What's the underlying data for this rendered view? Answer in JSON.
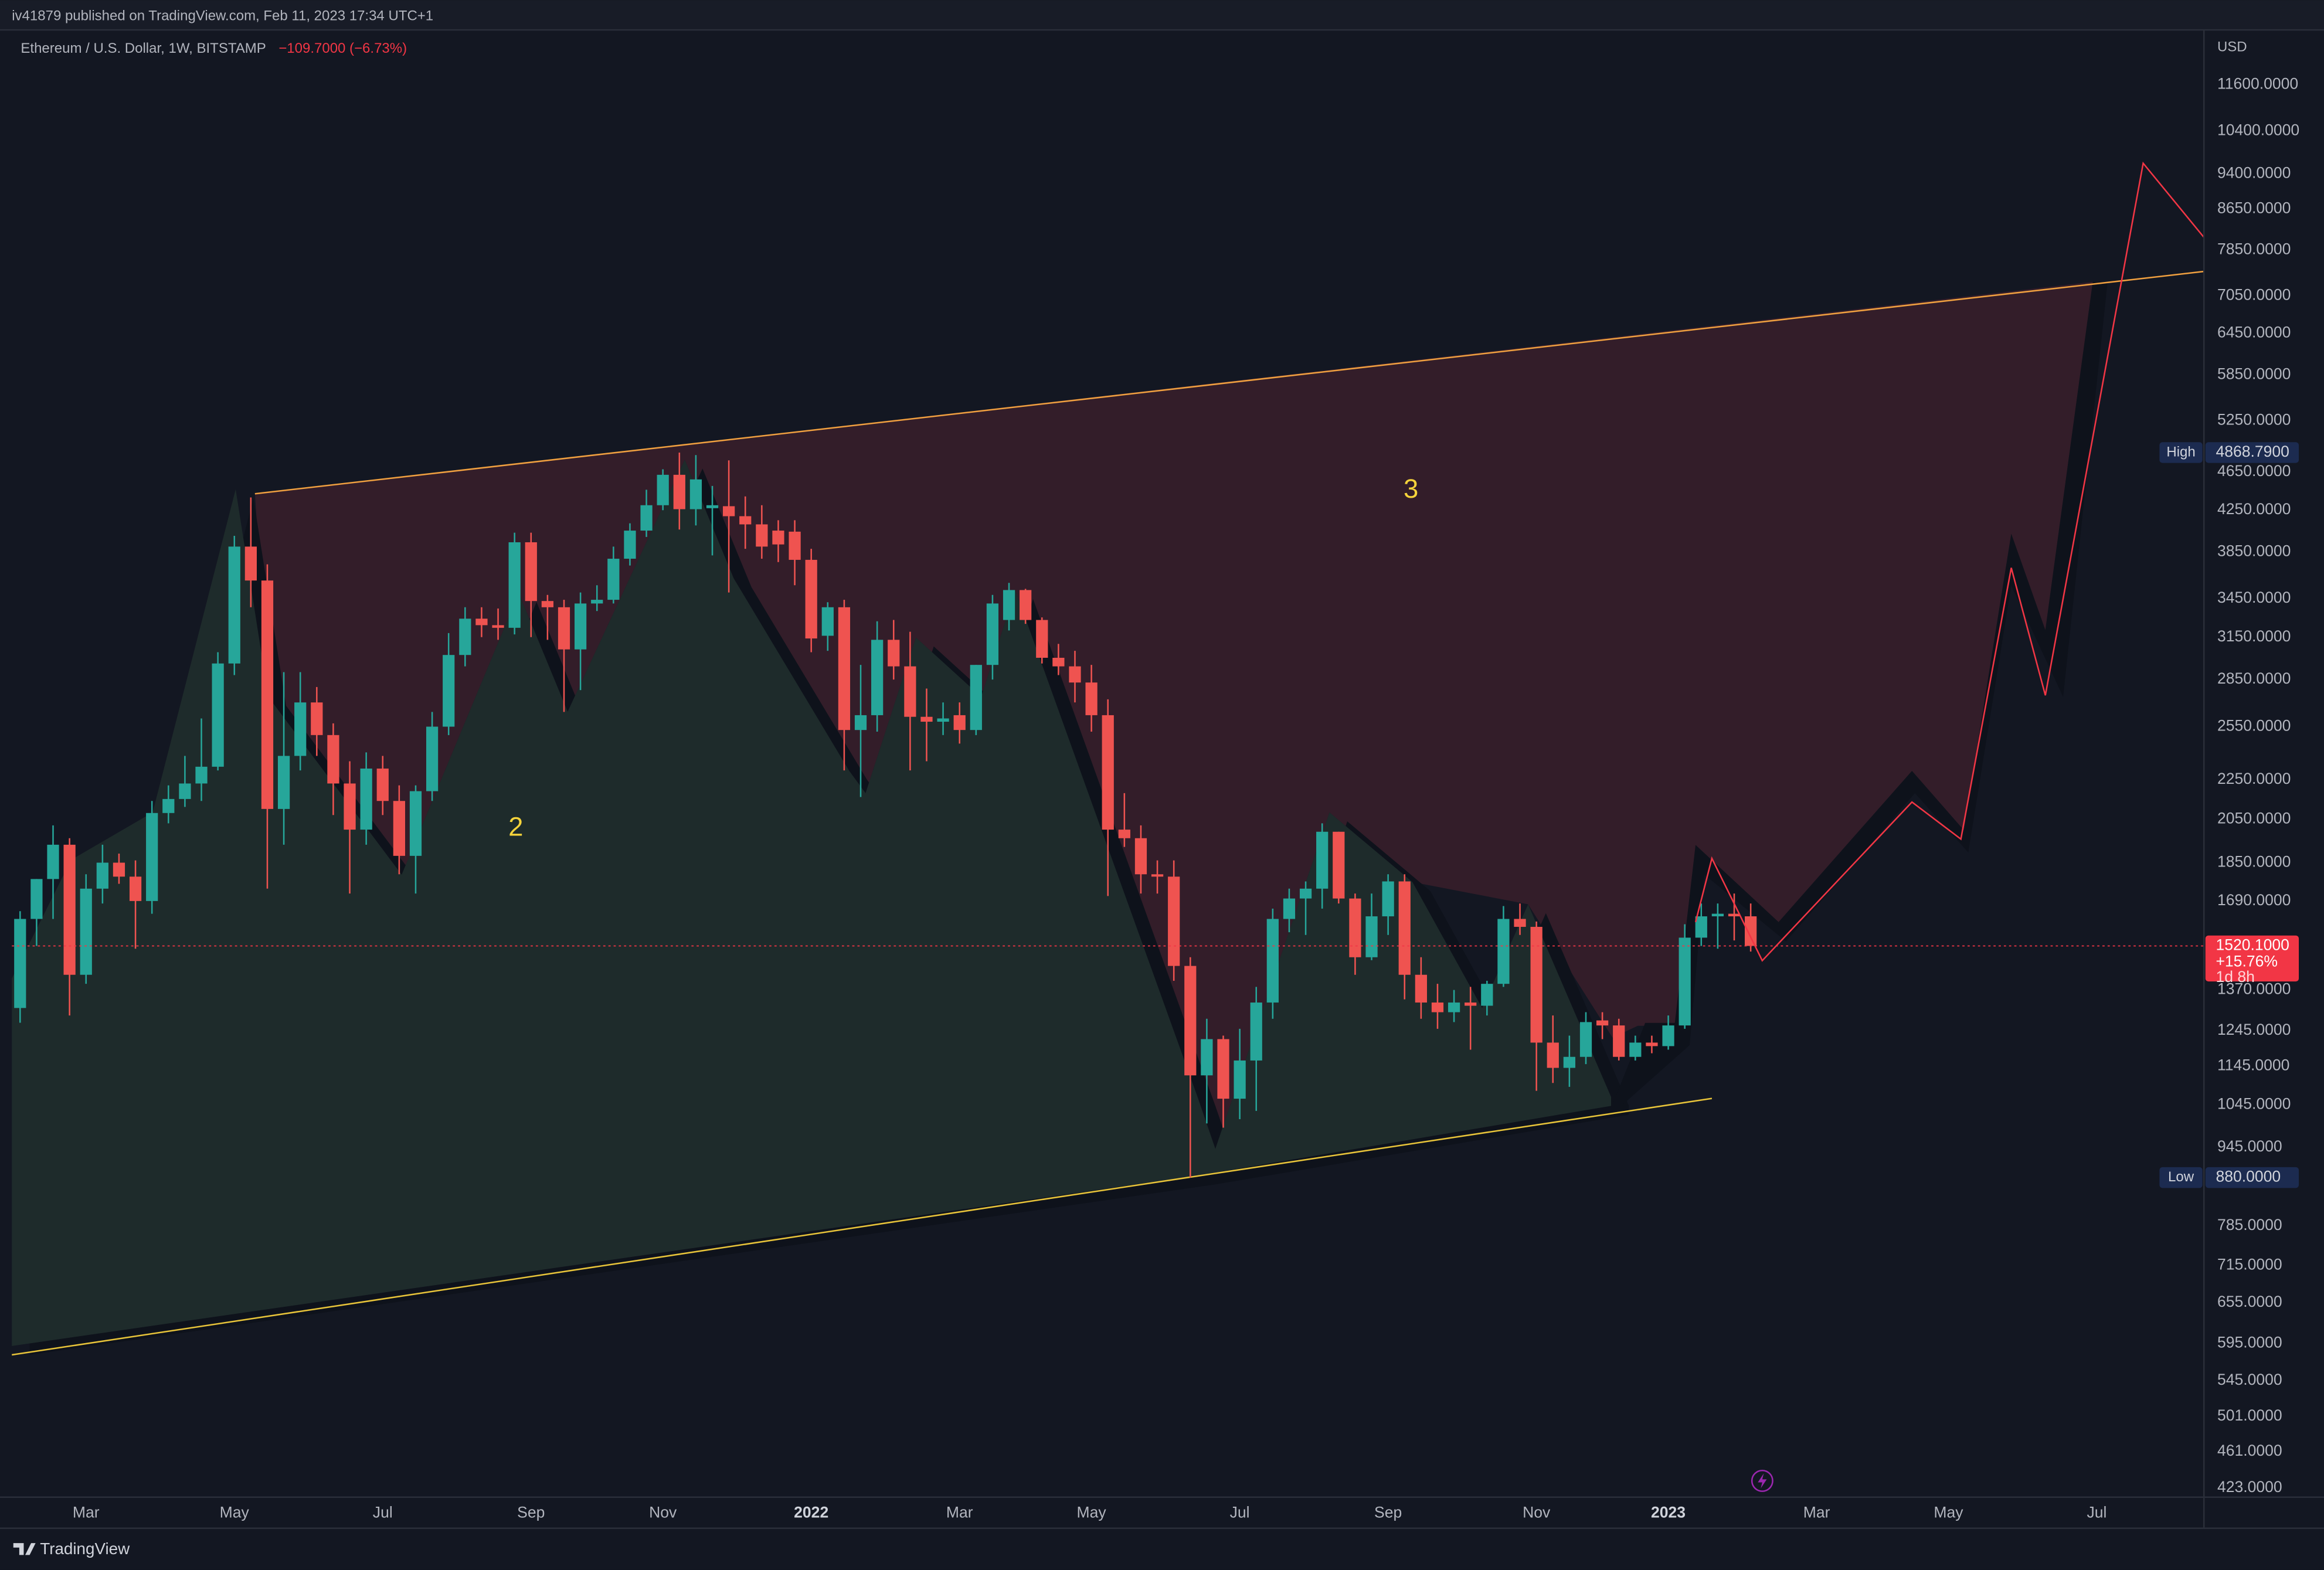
{
  "header": {
    "publisher": "iv41879 published on TradingView.com, Feb 11, 2023 17:34 UTC+1"
  },
  "chart_data": {
    "type": "candlestick",
    "title": "Ethereum / U.S. Dollar, 1W, BITSTAMP",
    "change_label": "−109.7000 (−6.73%)",
    "currency": "USD",
    "up_color": "#26a69a",
    "down_color": "#ef5350",
    "log_scale": true,
    "categories": [
      null,
      null,
      null,
      null,
      "Mar",
      null,
      null,
      null,
      null,
      null,
      null,
      null,
      null,
      "May",
      null,
      null,
      null,
      null,
      null,
      null,
      null,
      null,
      "Jul",
      null,
      null,
      null,
      null,
      null,
      null,
      null,
      null,
      "Sep",
      null,
      null,
      null,
      null,
      null,
      null,
      null,
      "Nov",
      null,
      null,
      null,
      null,
      null,
      null,
      null,
      null,
      "2022",
      null,
      null,
      null,
      null,
      null,
      null,
      null,
      null,
      "Mar",
      null,
      null,
      null,
      null,
      null,
      null,
      null,
      "May",
      null,
      null,
      null,
      null,
      null,
      null,
      null,
      null,
      "Jul",
      null,
      null,
      null,
      null,
      null,
      null,
      null,
      null,
      "Sep",
      null,
      null,
      null,
      null,
      null,
      null,
      null,
      null,
      "Nov",
      null,
      null,
      null,
      null,
      null,
      null,
      null,
      "2023",
      null,
      null,
      null,
      null,
      null,
      null,
      null,
      null,
      "Mar",
      null,
      null,
      null,
      null,
      null,
      null,
      null,
      "May",
      null,
      null,
      null,
      null,
      null,
      null,
      null,
      null,
      "Jul",
      null,
      null,
      null,
      null,
      null,
      null
    ],
    "open": [
      1313,
      1620,
      1780,
      1930,
      1420,
      1740,
      1850,
      1790,
      1690,
      2080,
      2150,
      2230,
      2320,
      2960,
      3900,
      3600,
      2100,
      2380,
      2700,
      2500,
      2230,
      2000,
      2310,
      2140,
      1880,
      2190,
      2550,
      3020,
      3290,
      3240,
      3220,
      3940,
      3430,
      3380,
      3060,
      3410,
      3440,
      3790,
      4050,
      4300,
      4620,
      4260,
      4270,
      4290,
      4190,
      4110,
      4050,
      4040,
      3780,
      3160,
      3380,
      2530,
      2620,
      3130,
      2940,
      2610,
      2580,
      2620,
      2530,
      2950,
      3280,
      3520,
      3280,
      3000,
      2940,
      2830,
      2620,
      2000,
      1960,
      1800,
      1790,
      1450,
      1120,
      1220,
      1060,
      1160,
      1330,
      1620,
      1700,
      1740,
      1990,
      1700,
      1480,
      1630,
      1770,
      1420,
      1330,
      1300,
      1330,
      1320,
      1390,
      1620,
      1590,
      1210,
      1140,
      1170,
      1275,
      1260,
      1170,
      1210,
      1200,
      1260,
      1550,
      1630,
      1640,
      1630,
      null,
      null,
      null,
      null,
      null,
      null,
      null,
      null,
      null,
      null,
      null,
      null,
      null,
      null,
      null,
      null,
      null,
      null,
      null,
      null,
      null,
      null,
      null,
      null,
      null,
      null,
      null
    ],
    "high": [
      1650,
      1780,
      2020,
      1960,
      1800,
      1930,
      1890,
      1860,
      2140,
      2220,
      2380,
      2600,
      3040,
      4000,
      4380,
      3740,
      2900,
      2900,
      2800,
      2570,
      2350,
      2400,
      2380,
      2220,
      2220,
      2640,
      3180,
      3380,
      3380,
      3370,
      4030,
      4030,
      3480,
      3440,
      3500,
      3560,
      3900,
      4120,
      4460,
      4680,
      4868.79,
      4840,
      4500,
      4780,
      4390,
      4300,
      4150,
      4150,
      3880,
      3420,
      3440,
      2950,
      3270,
      3280,
      3190,
      2790,
      2700,
      2700,
      2950,
      3480,
      3580,
      3530,
      3300,
      3100,
      3050,
      2950,
      2720,
      2180,
      2020,
      1860,
      1860,
      1480,
      1280,
      1230,
      1250,
      1380,
      1660,
      1740,
      1770,
      2030,
      1990,
      1720,
      1720,
      1800,
      1800,
      1480,
      1390,
      1370,
      1380,
      1400,
      1670,
      1680,
      1610,
      1290,
      1230,
      1300,
      1300,
      1280,
      1230,
      1230,
      1290,
      1600,
      1680,
      1680,
      1720,
      1680,
      null,
      null,
      null,
      null,
      null,
      null,
      null,
      null,
      null,
      null,
      null,
      null,
      null,
      null,
      null,
      null,
      null,
      null,
      null,
      null,
      null,
      null,
      null,
      null,
      null,
      null,
      null
    ],
    "low": [
      1268,
      1520,
      1620,
      1290,
      1390,
      1680,
      1760,
      1510,
      1640,
      2030,
      2110,
      2140,
      2300,
      2880,
      3380,
      1740,
      1930,
      2300,
      2380,
      2070,
      1720,
      1930,
      2070,
      1800,
      1720,
      2140,
      2500,
      2940,
      3150,
      3130,
      3170,
      3150,
      3130,
      2640,
      2780,
      3350,
      3410,
      3730,
      3990,
      4250,
      4060,
      4100,
      3820,
      3500,
      3880,
      3790,
      3760,
      3560,
      3040,
      3050,
      2300,
      2160,
      2520,
      2850,
      2300,
      2350,
      2500,
      2450,
      2500,
      2850,
      3200,
      3250,
      2960,
      2880,
      2700,
      2520,
      1710,
      1920,
      1720,
      1720,
      1400,
      880,
      1000,
      990,
      1010,
      1030,
      1280,
      1570,
      1560,
      1660,
      1680,
      1420,
      1470,
      1560,
      1340,
      1280,
      1250,
      1270,
      1190,
      1290,
      1380,
      1560,
      1080,
      1100,
      1090,
      1150,
      1220,
      1160,
      1160,
      1180,
      1190,
      1250,
      1520,
      1510,
      1540,
      1500,
      null,
      null,
      null,
      null,
      null,
      null,
      null,
      null,
      null,
      null,
      null,
      null,
      null,
      null,
      null,
      null,
      null,
      null,
      null,
      null,
      null,
      null,
      null,
      null,
      null,
      null,
      null
    ],
    "close": [
      1620,
      1780,
      1930,
      1420,
      1740,
      1850,
      1790,
      1690,
      2080,
      2150,
      2230,
      2320,
      2960,
      3900,
      3600,
      2100,
      2380,
      2700,
      2500,
      2230,
      2000,
      2310,
      2140,
      1880,
      2190,
      2550,
      3020,
      3290,
      3240,
      3220,
      3940,
      3430,
      3380,
      3060,
      3410,
      3440,
      3790,
      4050,
      4300,
      4620,
      4260,
      4570,
      4300,
      4190,
      4110,
      3900,
      3920,
      3780,
      3140,
      3380,
      2530,
      2620,
      3130,
      2940,
      2610,
      2580,
      2600,
      2530,
      2950,
      3410,
      3520,
      3280,
      3000,
      2940,
      2830,
      2620,
      2000,
      1960,
      1800,
      1790,
      1450,
      1120,
      1220,
      1060,
      1160,
      1330,
      1620,
      1700,
      1740,
      1990,
      1700,
      1480,
      1630,
      1770,
      1420,
      1330,
      1300,
      1330,
      1320,
      1390,
      1620,
      1590,
      1210,
      1140,
      1170,
      1270,
      1260,
      1170,
      1210,
      1200,
      1260,
      1550,
      1630,
      1640,
      1630,
      1520.1,
      null,
      null,
      null,
      null,
      null,
      null,
      null,
      null,
      null,
      null,
      null,
      null,
      null,
      null,
      null,
      null,
      null,
      null,
      null,
      null,
      null,
      null,
      null,
      null,
      null,
      null,
      null
    ],
    "ylim": [
      414,
      13200
    ],
    "yticks": [
      {
        "value": 11600,
        "label": "11600.0000"
      },
      {
        "value": 10400,
        "label": "10400.0000"
      },
      {
        "value": 9400,
        "label": "9400.0000"
      },
      {
        "value": 8650,
        "label": "8650.0000"
      },
      {
        "value": 7850,
        "label": "7850.0000"
      },
      {
        "value": 7050,
        "label": "7050.0000"
      },
      {
        "value": 6450,
        "label": "6450.0000"
      },
      {
        "value": 5850,
        "label": "5850.0000"
      },
      {
        "value": 5250,
        "label": "5250.0000"
      },
      {
        "value": 4650,
        "label": "4650.0000"
      },
      {
        "value": 4250,
        "label": "4250.0000"
      },
      {
        "value": 3850,
        "label": "3850.0000"
      },
      {
        "value": 3450,
        "label": "3450.0000"
      },
      {
        "value": 3150,
        "label": "3150.0000"
      },
      {
        "value": 2850,
        "label": "2850.0000"
      },
      {
        "value": 2550,
        "label": "2550.0000"
      },
      {
        "value": 2250,
        "label": "2250.0000"
      },
      {
        "value": 2050,
        "label": "2050.0000"
      },
      {
        "value": 1850,
        "label": "1850.0000"
      },
      {
        "value": 1690,
        "label": "1690.0000"
      },
      {
        "value": 1370,
        "label": "1370.0000"
      },
      {
        "value": 1245,
        "label": "1245.0000"
      },
      {
        "value": 1145,
        "label": "1145.0000"
      },
      {
        "value": 1045,
        "label": "1045.0000"
      },
      {
        "value": 945,
        "label": "945.0000"
      },
      {
        "value": 785,
        "label": "785.0000"
      },
      {
        "value": 715,
        "label": "715.0000"
      },
      {
        "value": 655,
        "label": "655.0000"
      },
      {
        "value": 595,
        "label": "595.0000"
      },
      {
        "value": 545,
        "label": "545.0000"
      },
      {
        "value": 501,
        "label": "501.0000"
      },
      {
        "value": 461,
        "label": "461.0000"
      },
      {
        "value": 423,
        "label": "423.0000"
      }
    ],
    "last_price": {
      "value": 1520.1,
      "label": "1520.1000",
      "change": "+15.76%",
      "countdown": "1d 8h",
      "color": "#f23645"
    },
    "high_marker": {
      "text": "High",
      "value": 4868.79,
      "label": "4868.7900"
    },
    "low_marker": {
      "text": "Low",
      "value": 880,
      "label": "880.0000"
    },
    "annotations": [
      "2",
      "3"
    ]
  },
  "footer": {
    "brand": "TradingView"
  }
}
